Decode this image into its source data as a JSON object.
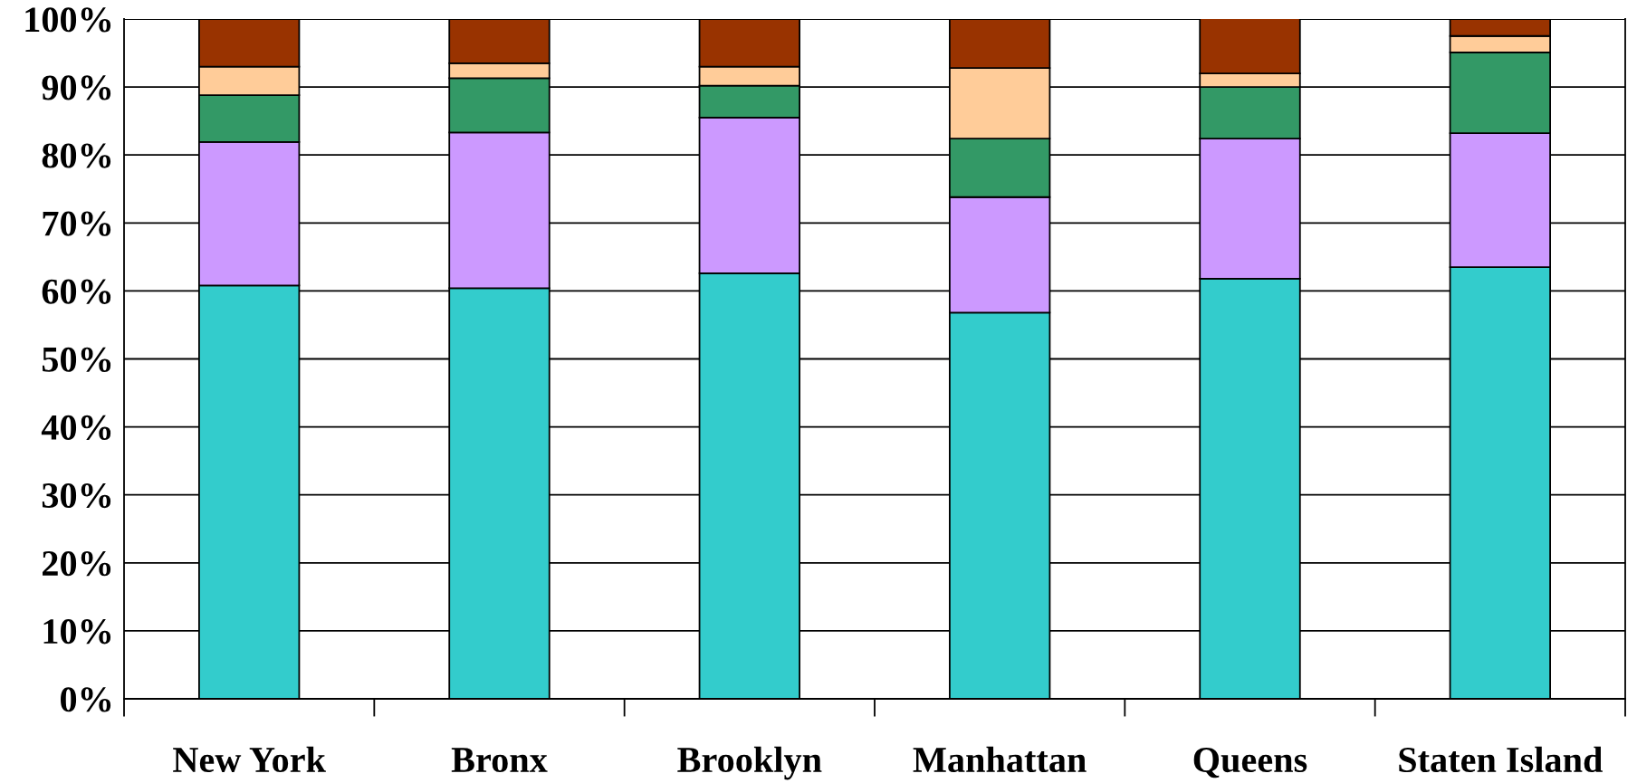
{
  "chart_data": {
    "type": "bar",
    "stacked": true,
    "categories": [
      "New York",
      "Bronx",
      "Brooklyn",
      "Manhattan",
      "Queens",
      "Staten Island"
    ],
    "series": [
      {
        "color": "#33cccc",
        "values": [
          60.8,
          60.4,
          62.6,
          56.8,
          61.8,
          63.5
        ]
      },
      {
        "color": "#cc99ff",
        "values": [
          21.1,
          22.9,
          22.9,
          17.0,
          20.6,
          19.7
        ]
      },
      {
        "color": "#339966",
        "values": [
          6.9,
          8.0,
          4.7,
          8.6,
          7.6,
          11.9
        ]
      },
      {
        "color": "#ffcc99",
        "values": [
          4.2,
          2.2,
          2.8,
          10.4,
          2.0,
          2.4
        ]
      },
      {
        "color": "#993300",
        "values": [
          7.0,
          6.5,
          7.0,
          7.2,
          8.2,
          2.5
        ]
      }
    ],
    "ylim": [
      0,
      100
    ],
    "yticks": [
      {
        "value": 0,
        "label": "0%"
      },
      {
        "value": 10,
        "label": "10%"
      },
      {
        "value": 20,
        "label": "20%"
      },
      {
        "value": 30,
        "label": "30%"
      },
      {
        "value": 40,
        "label": "40%"
      },
      {
        "value": 50,
        "label": "50%"
      },
      {
        "value": 60,
        "label": "60%"
      },
      {
        "value": 70,
        "label": "70%"
      },
      {
        "value": 80,
        "label": "80%"
      },
      {
        "value": 90,
        "label": "90%"
      },
      {
        "value": 100,
        "label": "100%"
      }
    ],
    "grid": "y"
  }
}
